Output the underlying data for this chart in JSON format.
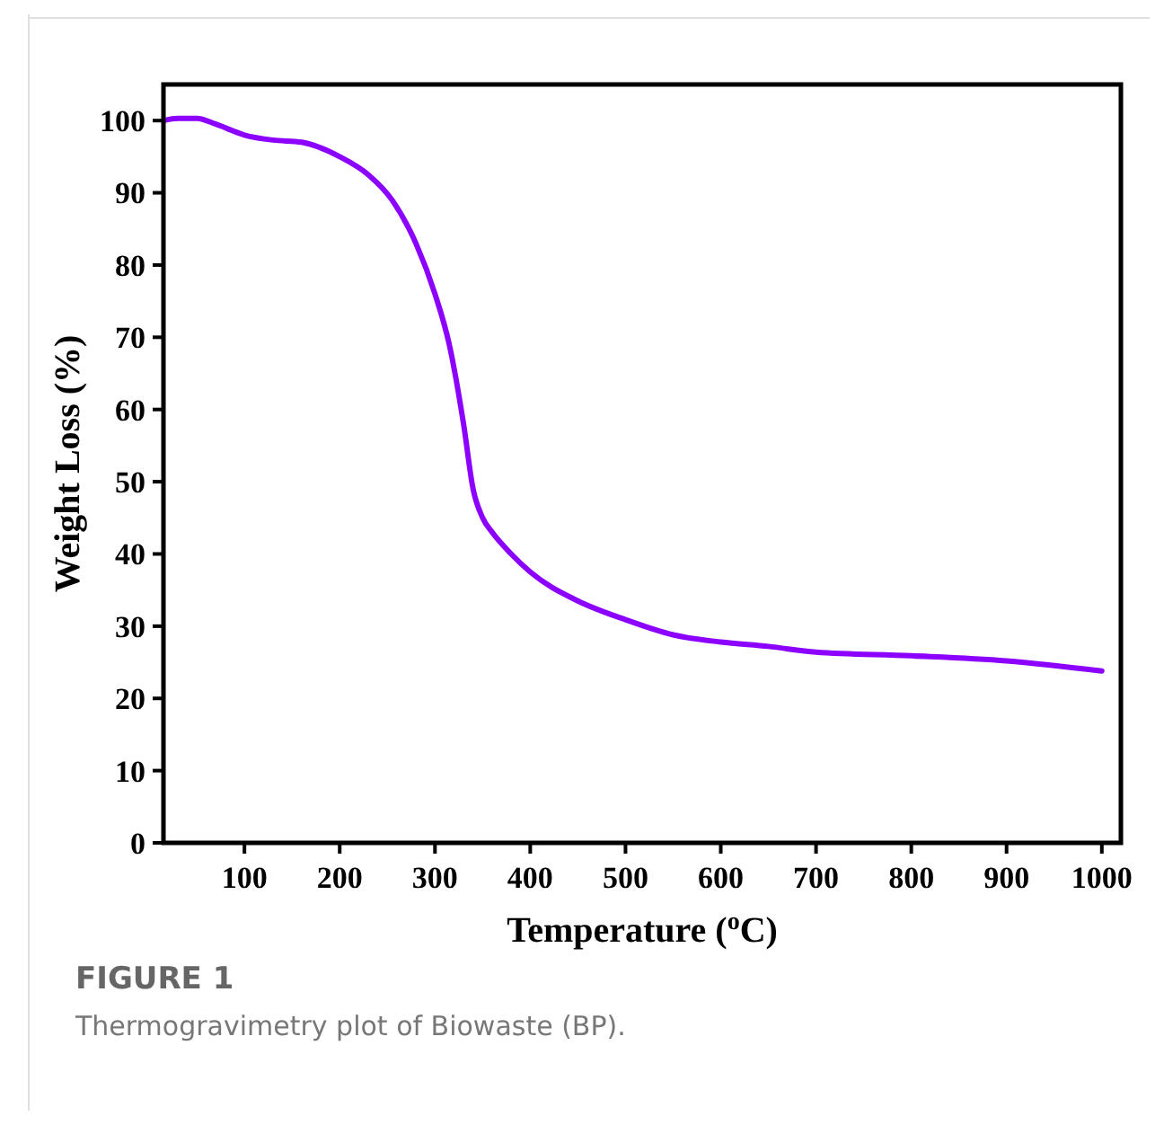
{
  "chart_data": {
    "type": "line",
    "xlabel": "Temperature ($^{o}$C)",
    "ylabel": "Weight Loss (%)",
    "annotations": [
      "FIGURE 1",
      "Thermogravimetry plot of Biowaste (BP)."
    ],
    "xlim": [
      15,
      1020
    ],
    "ylim": [
      0,
      105
    ],
    "xticks": [
      100,
      200,
      300,
      400,
      500,
      600,
      700,
      800,
      900,
      1000
    ],
    "yticks": [
      0,
      10,
      20,
      30,
      40,
      50,
      60,
      70,
      80,
      90,
      100
    ],
    "grid": false,
    "line_style": "solid",
    "series": [
      {
        "color": "#8b00ff",
        "x": [
          15,
          30,
          50,
          70,
          100,
          130,
          160,
          200,
          230,
          255,
          280,
          300,
          315,
          330,
          340,
          350,
          360,
          380,
          400,
          450,
          500,
          550,
          600,
          650,
          700,
          800,
          900,
          1000
        ],
        "values": [
          100,
          100.3,
          100.3,
          99.5,
          98,
          97.3,
          97,
          95,
          92.5,
          89,
          83,
          76,
          69,
          58,
          49,
          45,
          43,
          40,
          37.5,
          33.5,
          30.9,
          28.8,
          27.8,
          27.2,
          26.4,
          25.9,
          25.2,
          23.8
        ]
      }
    ]
  }
}
